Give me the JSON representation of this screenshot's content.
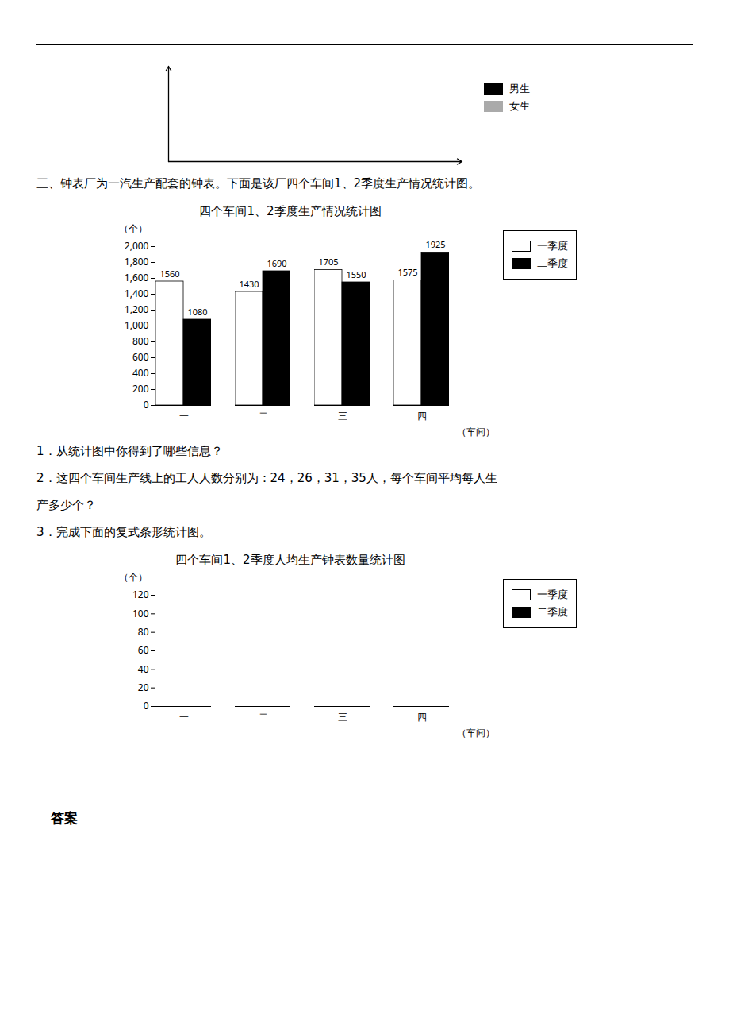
{
  "chart_data": [
    {
      "type": "bar",
      "xlim": [
        0,
        5
      ],
      "ylim": [
        0,
        5
      ],
      "tick_labels": false,
      "legend": "upper right",
      "series": [
        {
          "name": "男生",
          "color": "#000000",
          "values": []
        },
        {
          "name": "女生",
          "color": "#aaaaaa",
          "values": []
        }
      ]
    },
    {
      "type": "bar",
      "annotations": [
        "三、钟表厂为一汽生产配套的钟表。下面是该厂四个车间1、2季度生产情况统计图。"
      ],
      "title": "四个车间1、2季度生产情况统计图",
      "xlabel": "（车间）",
      "ylabel": "（个）",
      "categories": [
        "一",
        "二",
        "三",
        "四"
      ],
      "series": [
        {
          "name": "一季度",
          "color": "#ffffff",
          "values": [
            1560,
            1430,
            1705,
            1575
          ]
        },
        {
          "name": "二季度",
          "color": "#000000",
          "values": [
            1080,
            1690,
            1550,
            1925
          ]
        }
      ],
      "ylim": [
        0,
        2000
      ],
      "yticks": [
        0,
        200,
        400,
        600,
        800,
        1000,
        1200,
        1400,
        1600,
        1800,
        2000
      ],
      "data_labels": true,
      "legend": "upper right"
    },
    {
      "type": "bar",
      "annotations": [
        "1．从统计图中你得到了哪些信息？",
        "2．这四个车间生产线上的工人人数分别为：24，26，31，35人，每个车间平均每人生",
        "产多少个？",
        "3．完成下面的复式条形统计图。"
      ],
      "title": "四个车间1、2季度人均生产钟表数量统计图",
      "xlabel": "（车间）",
      "ylabel": "（个）",
      "categories": [
        "一",
        "二",
        "三",
        "四"
      ],
      "series": [
        {
          "name": "一季度",
          "color": "#ffffff",
          "values": [
            null,
            null,
            null,
            null
          ]
        },
        {
          "name": "二季度",
          "color": "#000000",
          "values": [
            null,
            null,
            null,
            null
          ]
        }
      ],
      "ylim": [
        0,
        120
      ],
      "yticks": [
        0,
        20,
        40,
        60,
        80,
        100,
        120
      ],
      "legend": "upper right",
      "caption": "答案"
    }
  ]
}
